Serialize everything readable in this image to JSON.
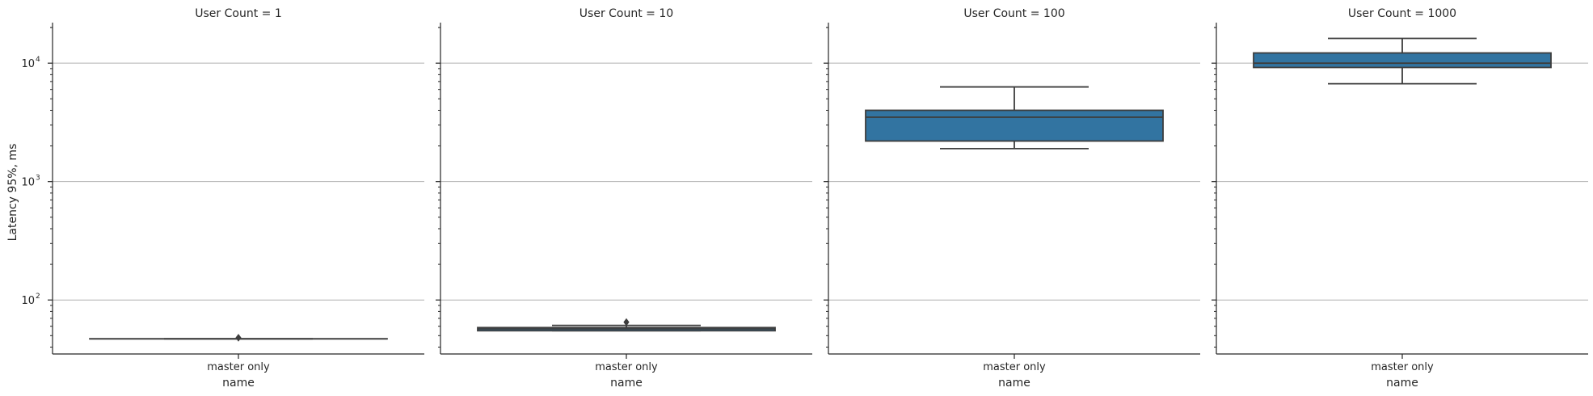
{
  "chart_data": {
    "type": "box",
    "ylabel": "Latency 95%, ms",
    "xlabel": "name",
    "yscale": "log",
    "ylim": [
      35,
      22000
    ],
    "y_ticks": [
      100,
      1000,
      10000
    ],
    "y_tick_labels": [
      "10",
      "10",
      "10"
    ],
    "y_tick_exponents": [
      "2",
      "3",
      "4"
    ],
    "grid": "horizontal",
    "box_color": "#3274a1",
    "line_color": "#3d3d3d",
    "facets": [
      {
        "title": "User Count = 1",
        "category": "master only",
        "box": {
          "whisker_low": 47,
          "q1": 47,
          "median": 47,
          "q3": 47,
          "whisker_high": 47,
          "outliers": [
            48
          ]
        }
      },
      {
        "title": "User Count = 10",
        "category": "master only",
        "box": {
          "whisker_low": 55,
          "q1": 55,
          "median": 57,
          "q3": 58.5,
          "whisker_high": 61,
          "outliers": [
            65
          ]
        }
      },
      {
        "title": "User Count = 100",
        "category": "master only",
        "box": {
          "whisker_low": 1900,
          "q1": 2200,
          "median": 3500,
          "q3": 4000,
          "whisker_high": 6300,
          "outliers": []
        }
      },
      {
        "title": "User Count = 1000",
        "category": "master only",
        "box": {
          "whisker_low": 6700,
          "q1": 9200,
          "median": 10000,
          "q3": 12200,
          "whisker_high": 16200,
          "outliers": []
        }
      }
    ]
  }
}
